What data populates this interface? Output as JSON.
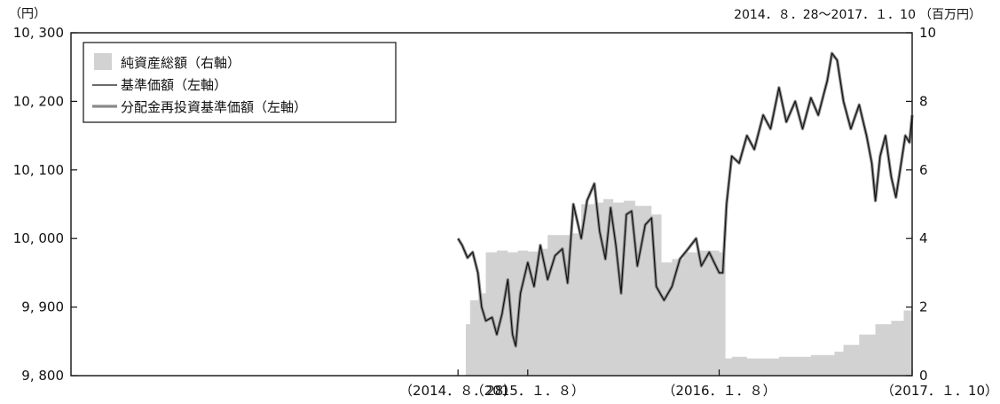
{
  "chart_data": {
    "type": "line",
    "date_range": "2014．８．28～2017．１．10",
    "left_axis": {
      "unit": "（円）",
      "ylim": [
        9800,
        10300
      ],
      "ticks": [
        {
          "value": 9800,
          "label": "9, 800"
        },
        {
          "value": 9900,
          "label": "9, 900"
        },
        {
          "value": 10000,
          "label": "10, 000"
        },
        {
          "value": 10100,
          "label": "10, 100"
        },
        {
          "value": 10200,
          "label": "10, 200"
        },
        {
          "value": 10300,
          "label": "10, 300"
        }
      ]
    },
    "right_axis": {
      "unit": "（百万円）",
      "ylim": [
        0,
        10
      ],
      "ticks": [
        {
          "value": 0,
          "label": "0"
        },
        {
          "value": 2,
          "label": "2"
        },
        {
          "value": 4,
          "label": "4"
        },
        {
          "value": 6,
          "label": "6"
        },
        {
          "value": 8,
          "label": "8"
        },
        {
          "value": 10,
          "label": "10"
        }
      ]
    },
    "x_axis": {
      "xlim": [
        "2012-08-20",
        "2017-01-10"
      ],
      "tick_labels": [
        {
          "date": "2014-08-28",
          "label": "（2014．８．28）"
        },
        {
          "date": "2015-01-08",
          "label": "（2015．１．８）"
        },
        {
          "date": "2016-01-08",
          "label": "（2016．１．８）"
        },
        {
          "date": "2017-01-10",
          "label": "（2017．１．10）"
        }
      ]
    },
    "legend": {
      "placement": "top-left",
      "entries": [
        "純資産総額（右軸）",
        "基準価額（左軸）",
        "分配金再投資基準価額（左軸）"
      ]
    },
    "colors": {
      "net_assets": "#d2d2d2",
      "nav": "#111111",
      "reinvest": "#8a8a8a"
    },
    "series": [
      {
        "name": "純資産総額（右軸）",
        "axis": "right",
        "kind": "area",
        "points": [
          [
            "2014-08-28",
            0.0
          ],
          [
            "2014-09-08",
            0.0
          ],
          [
            "2014-09-12",
            1.5
          ],
          [
            "2014-09-20",
            2.2
          ],
          [
            "2014-10-06",
            2.4
          ],
          [
            "2014-10-20",
            3.6
          ],
          [
            "2014-11-10",
            3.65
          ],
          [
            "2014-12-01",
            3.6
          ],
          [
            "2014-12-20",
            3.65
          ],
          [
            "2015-01-08",
            3.62
          ],
          [
            "2015-02-01",
            3.7
          ],
          [
            "2015-02-15",
            4.1
          ],
          [
            "2015-03-15",
            4.1
          ],
          [
            "2015-04-01",
            4.15
          ],
          [
            "2015-04-20",
            5.0
          ],
          [
            "2015-05-15",
            5.05
          ],
          [
            "2015-06-01",
            5.15
          ],
          [
            "2015-06-20",
            5.05
          ],
          [
            "2015-07-10",
            5.1
          ],
          [
            "2015-08-01",
            4.95
          ],
          [
            "2015-09-01",
            4.7
          ],
          [
            "2015-09-20",
            3.3
          ],
          [
            "2015-10-10",
            3.4
          ],
          [
            "2015-11-01",
            3.6
          ],
          [
            "2015-12-01",
            3.65
          ],
          [
            "2016-01-08",
            3.6
          ],
          [
            "2016-01-15",
            3.55
          ],
          [
            "2016-01-20",
            0.5
          ],
          [
            "2016-02-01",
            0.55
          ],
          [
            "2016-03-01",
            0.5
          ],
          [
            "2016-05-01",
            0.55
          ],
          [
            "2016-07-01",
            0.6
          ],
          [
            "2016-08-15",
            0.7
          ],
          [
            "2016-09-01",
            0.9
          ],
          [
            "2016-10-01",
            1.2
          ],
          [
            "2016-11-01",
            1.5
          ],
          [
            "2016-12-01",
            1.6
          ],
          [
            "2016-12-25",
            1.9
          ],
          [
            "2017-01-10",
            1.95
          ]
        ]
      },
      {
        "name": "基準価額（左軸）",
        "axis": "left",
        "kind": "line",
        "points": [
          [
            "2014-08-28",
            10000
          ],
          [
            "2014-09-05",
            9990
          ],
          [
            "2014-09-15",
            9972
          ],
          [
            "2014-09-25",
            9980
          ],
          [
            "2014-10-05",
            9950
          ],
          [
            "2014-10-12",
            9900
          ],
          [
            "2014-10-20",
            9880
          ],
          [
            "2014-11-01",
            9885
          ],
          [
            "2014-11-10",
            9860
          ],
          [
            "2014-11-20",
            9890
          ],
          [
            "2014-12-01",
            9940
          ],
          [
            "2014-12-10",
            9860
          ],
          [
            "2014-12-16",
            9843
          ],
          [
            "2014-12-25",
            9920
          ],
          [
            "2015-01-08",
            9965
          ],
          [
            "2015-01-20",
            9930
          ],
          [
            "2015-02-01",
            9990
          ],
          [
            "2015-02-15",
            9940
          ],
          [
            "2015-03-01",
            9975
          ],
          [
            "2015-03-15",
            9985
          ],
          [
            "2015-03-25",
            9935
          ],
          [
            "2015-04-05",
            10050
          ],
          [
            "2015-04-20",
            10000
          ],
          [
            "2015-05-01",
            10055
          ],
          [
            "2015-05-15",
            10080
          ],
          [
            "2015-05-25",
            10010
          ],
          [
            "2015-06-05",
            9970
          ],
          [
            "2015-06-15",
            10045
          ],
          [
            "2015-06-25",
            9990
          ],
          [
            "2015-07-05",
            9920
          ],
          [
            "2015-07-15",
            10035
          ],
          [
            "2015-07-25",
            10040
          ],
          [
            "2015-08-05",
            9960
          ],
          [
            "2015-08-20",
            10020
          ],
          [
            "2015-09-01",
            10030
          ],
          [
            "2015-09-10",
            9930
          ],
          [
            "2015-09-25",
            9910
          ],
          [
            "2015-10-10",
            9930
          ],
          [
            "2015-10-25",
            9970
          ],
          [
            "2015-11-10",
            9985
          ],
          [
            "2015-11-25",
            10000
          ],
          [
            "2015-12-05",
            9960
          ],
          [
            "2015-12-20",
            9980
          ],
          [
            "2016-01-08",
            9950
          ],
          [
            "2016-01-15",
            9950
          ],
          [
            "2016-01-22",
            10050
          ],
          [
            "2016-02-01",
            10120
          ],
          [
            "2016-02-15",
            10110
          ],
          [
            "2016-03-01",
            10150
          ],
          [
            "2016-03-15",
            10130
          ],
          [
            "2016-04-01",
            10180
          ],
          [
            "2016-04-15",
            10160
          ],
          [
            "2016-05-01",
            10220
          ],
          [
            "2016-05-15",
            10170
          ],
          [
            "2016-06-01",
            10200
          ],
          [
            "2016-06-15",
            10160
          ],
          [
            "2016-07-01",
            10205
          ],
          [
            "2016-07-15",
            10180
          ],
          [
            "2016-08-01",
            10230
          ],
          [
            "2016-08-10",
            10270
          ],
          [
            "2016-08-20",
            10260
          ],
          [
            "2016-09-01",
            10200
          ],
          [
            "2016-09-15",
            10160
          ],
          [
            "2016-10-01",
            10195
          ],
          [
            "2016-10-15",
            10150
          ],
          [
            "2016-10-25",
            10110
          ],
          [
            "2016-11-01",
            10055
          ],
          [
            "2016-11-10",
            10120
          ],
          [
            "2016-11-20",
            10150
          ],
          [
            "2016-12-01",
            10090
          ],
          [
            "2016-12-10",
            10060
          ],
          [
            "2016-12-20",
            10110
          ],
          [
            "2016-12-28",
            10150
          ],
          [
            "2017-01-05",
            10140
          ],
          [
            "2017-01-10",
            10180
          ]
        ]
      },
      {
        "name": "分配金再投資基準価額（左軸）",
        "axis": "left",
        "kind": "line",
        "same_as": "基準価額（左軸）"
      }
    ]
  }
}
